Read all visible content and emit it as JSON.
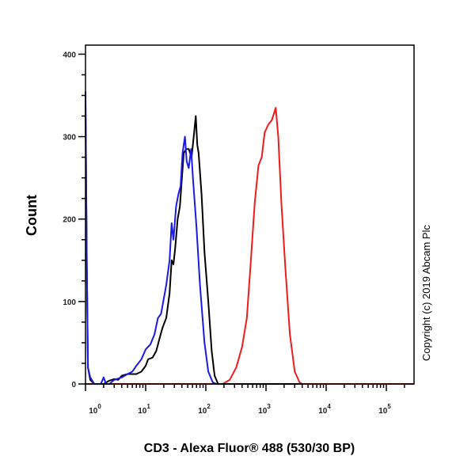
{
  "chart_data": {
    "type": "line",
    "title": "",
    "xlabel": "CD3 - Alexa Fluor® 488 (530/30 BP)",
    "ylabel": "Count",
    "annotation": "Copyright (c) 2019 Abcam Plc",
    "x_scale": "log",
    "xlim": [
      1,
      290000
    ],
    "ylim": [
      0,
      411
    ],
    "grid": false,
    "x_ticks": [
      {
        "value": 1,
        "base": "10",
        "exp": "0"
      },
      {
        "value": 10,
        "base": "10",
        "exp": "1"
      },
      {
        "value": 100,
        "base": "10",
        "exp": "2"
      },
      {
        "value": 1000,
        "base": "10",
        "exp": "3"
      },
      {
        "value": 10000,
        "base": "10",
        "exp": "4"
      },
      {
        "value": 100000,
        "base": "10",
        "exp": "5"
      }
    ],
    "y_ticks": [
      "0",
      "100",
      "200",
      "300",
      "400"
    ],
    "series": [
      {
        "color": "#ee1c1c",
        "points": [
          [
            1,
            0
          ],
          [
            190,
            0
          ],
          [
            250,
            5
          ],
          [
            320,
            20
          ],
          [
            400,
            45
          ],
          [
            480,
            80
          ],
          [
            560,
            150
          ],
          [
            650,
            220
          ],
          [
            750,
            265
          ],
          [
            850,
            275
          ],
          [
            950,
            305
          ],
          [
            1100,
            315
          ],
          [
            1250,
            320
          ],
          [
            1450,
            335
          ],
          [
            1600,
            300
          ],
          [
            1800,
            220
          ],
          [
            2100,
            140
          ],
          [
            2500,
            60
          ],
          [
            3000,
            15
          ],
          [
            3600,
            2
          ],
          [
            4000,
            0
          ],
          [
            290000,
            0
          ]
        ]
      },
      {
        "color": "#000000",
        "points": [
          [
            1,
            340
          ],
          [
            1.05,
            150
          ],
          [
            1.1,
            20
          ],
          [
            1.2,
            5
          ],
          [
            1.4,
            0
          ],
          [
            2,
            0
          ],
          [
            2.5,
            4
          ],
          [
            3,
            6
          ],
          [
            3.5,
            5
          ],
          [
            4,
            10
          ],
          [
            5,
            12
          ],
          [
            7,
            12
          ],
          [
            8.5,
            15
          ],
          [
            10,
            22
          ],
          [
            11,
            30
          ],
          [
            13,
            32
          ],
          [
            15,
            40
          ],
          [
            17,
            55
          ],
          [
            19,
            68
          ],
          [
            22,
            80
          ],
          [
            25,
            110
          ],
          [
            27,
            150
          ],
          [
            29,
            145
          ],
          [
            31,
            165
          ],
          [
            34,
            200
          ],
          [
            37,
            215
          ],
          [
            40,
            250
          ],
          [
            43,
            280
          ],
          [
            47,
            285
          ],
          [
            52,
            285
          ],
          [
            58,
            275
          ],
          [
            63,
            300
          ],
          [
            68,
            325
          ],
          [
            72,
            290
          ],
          [
            76,
            280
          ],
          [
            85,
            230
          ],
          [
            95,
            160
          ],
          [
            110,
            100
          ],
          [
            125,
            40
          ],
          [
            140,
            10
          ],
          [
            160,
            0
          ],
          [
            4000,
            0
          ]
        ]
      },
      {
        "color": "#1a1ae6",
        "points": [
          [
            1,
            355
          ],
          [
            1.05,
            150
          ],
          [
            1.1,
            20
          ],
          [
            1.2,
            8
          ],
          [
            1.4,
            0
          ],
          [
            1.8,
            0
          ],
          [
            2,
            8
          ],
          [
            2.2,
            0
          ],
          [
            2.5,
            0
          ],
          [
            3,
            5
          ],
          [
            4,
            8
          ],
          [
            5,
            12
          ],
          [
            6,
            15
          ],
          [
            7,
            22
          ],
          [
            8.5,
            30
          ],
          [
            10,
            42
          ],
          [
            12,
            48
          ],
          [
            14,
            60
          ],
          [
            16,
            80
          ],
          [
            18,
            85
          ],
          [
            22,
            120
          ],
          [
            25,
            150
          ],
          [
            27,
            195
          ],
          [
            29,
            175
          ],
          [
            32,
            215
          ],
          [
            35,
            230
          ],
          [
            38,
            240
          ],
          [
            41,
            280
          ],
          [
            45,
            300
          ],
          [
            48,
            270
          ],
          [
            52,
            262
          ],
          [
            57,
            285
          ],
          [
            61,
            250
          ],
          [
            70,
            190
          ],
          [
            80,
            120
          ],
          [
            95,
            50
          ],
          [
            110,
            15
          ],
          [
            130,
            2
          ],
          [
            150,
            0
          ]
        ]
      }
    ]
  }
}
